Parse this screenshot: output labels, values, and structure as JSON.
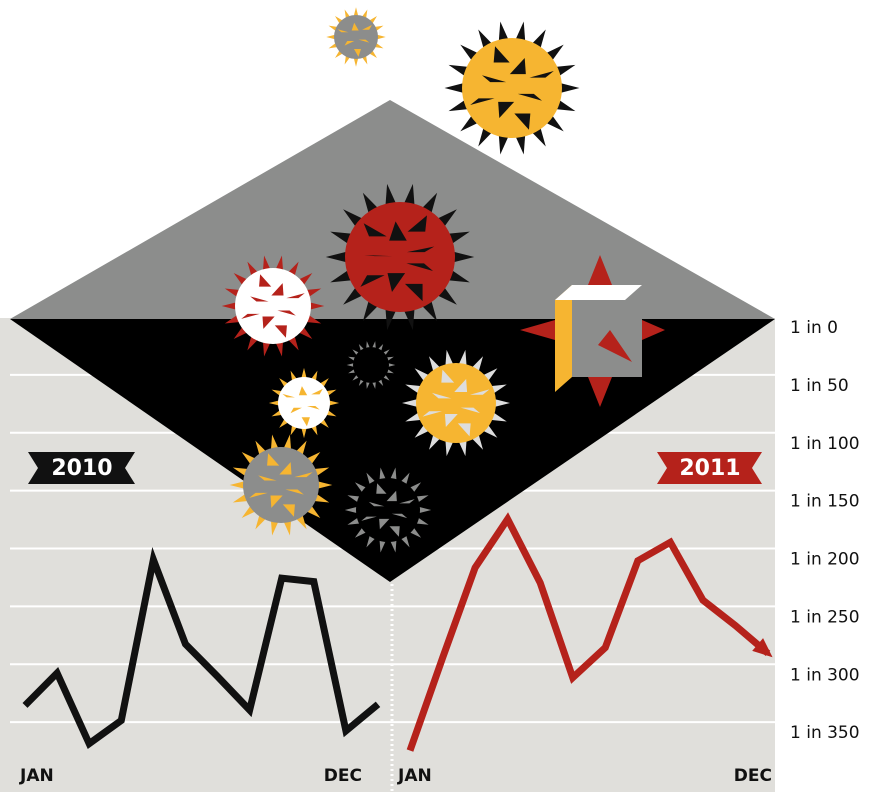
{
  "chart_data": [
    {
      "type": "line",
      "categories": [
        "JAN",
        null,
        null,
        null,
        null,
        null,
        null,
        null,
        null,
        null,
        null,
        "DEC"
      ],
      "series": [
        {
          "name": "2010",
          "color": "#111111",
          "values": [
            333,
            305,
            366,
            346,
            207,
            280,
            308,
            337,
            223,
            226,
            355,
            332
          ]
        }
      ],
      "ylim": [
        0,
        400
      ],
      "y_reversed": true
    },
    {
      "type": "line",
      "categories": [
        "JAN",
        null,
        null,
        null,
        null,
        null,
        null,
        null,
        null,
        null,
        null,
        "DEC"
      ],
      "series": [
        {
          "name": "2011",
          "color": "#b5221b",
          "values": [
            372,
            292,
            214,
            172,
            227,
            309,
            283,
            208,
            192,
            242,
            264,
            288
          ]
        }
      ],
      "ylim": [
        0,
        400
      ],
      "y_reversed": true,
      "grid": true,
      "yticks": [
        {
          "value": 0,
          "label": "1 in 0"
        },
        {
          "value": 50,
          "label": "1 in 50"
        },
        {
          "value": 100,
          "label": "1 in 100"
        },
        {
          "value": 150,
          "label": "1 in 150"
        },
        {
          "value": 200,
          "label": "1 in 200"
        },
        {
          "value": 250,
          "label": "1 in 250"
        },
        {
          "value": 300,
          "label": "1 in 300"
        },
        {
          "value": 350,
          "label": "1 in 350"
        }
      ]
    }
  ]
}
